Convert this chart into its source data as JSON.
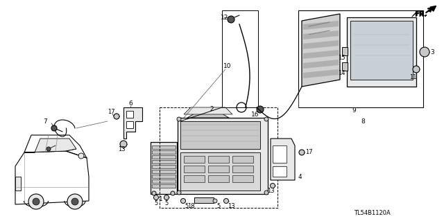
{
  "bg_color": "#ffffff",
  "diagram_code": "TL54B1120A",
  "figsize": [
    6.4,
    3.19
  ],
  "dpi": 100,
  "line_color": "#1a1a1a",
  "gray_fill": "#c8c8c8",
  "light_gray": "#e8e8e8",
  "dark_gray": "#555555"
}
